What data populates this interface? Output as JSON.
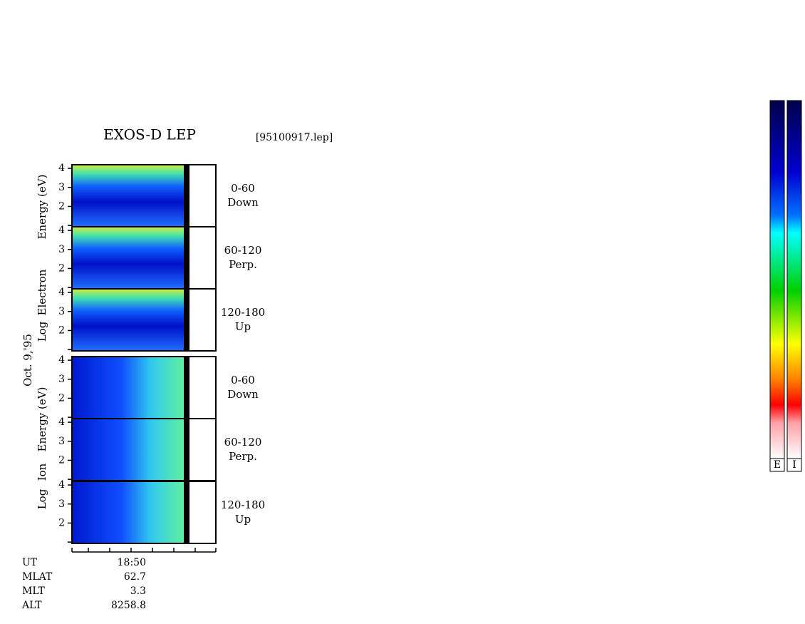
{
  "chart_data": {
    "type": "spectrogram",
    "title": "EXOS-D LEP",
    "file": "[95100917.lep]",
    "date": "Oct. 9,'95",
    "ylim": [
      0.93,
      4.19
    ],
    "yticks": [
      {
        "value": 1,
        "label": null
      },
      2,
      3,
      4
    ],
    "groups": [
      {
        "ylabel": [
          "Log",
          "Electron",
          "Energy (eV)"
        ],
        "panels": [
          {
            "angle": "0-60",
            "direction": "Down"
          },
          {
            "angle": "60-120",
            "direction": "Perp."
          },
          {
            "angle": "120-180",
            "direction": "Up"
          }
        ]
      },
      {
        "ylabel": [
          "Log",
          "Ion",
          "Energy (eV)"
        ],
        "panels": [
          {
            "angle": "0-60",
            "direction": "Down"
          },
          {
            "angle": "60-120",
            "direction": "Perp."
          },
          {
            "angle": "120-180",
            "direction": "Up"
          }
        ]
      }
    ],
    "footer": {
      "labels": [
        "UT",
        "MLAT",
        "MLT",
        "ALT"
      ],
      "values": [
        "18:50",
        62.7,
        3.3,
        8258.8
      ]
    },
    "colorbars": [
      "E",
      "I"
    ]
  }
}
